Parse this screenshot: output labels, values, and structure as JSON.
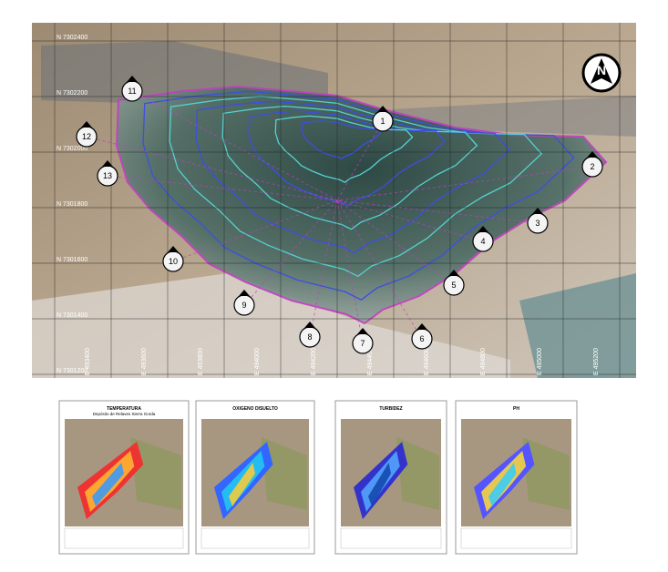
{
  "map": {
    "north_arrow": "N",
    "north_labels": [
      "N 7302400",
      "N 7302200",
      "N 7302000",
      "N 7301800",
      "N 7301600",
      "N 7301400",
      "N 7301200"
    ],
    "east_labels": [
      "E 493400",
      "E 493600",
      "E 493800",
      "E 494000",
      "E 494200",
      "E 494400",
      "E 494600",
      "E 494800",
      "E 495000",
      "E 495200"
    ],
    "section_labels": [
      "1",
      "2",
      "3",
      "4",
      "5",
      "6",
      "7",
      "8",
      "9",
      "10",
      "11",
      "12",
      "13"
    ]
  },
  "thumbnails": [
    {
      "title": "TEMPERATURA",
      "subtitle": "Depósito de Relaves Sierra Gorda"
    },
    {
      "title": "OXIGENO DISUELTO"
    },
    {
      "title": "TURBIDEZ"
    },
    {
      "title": "PH"
    }
  ]
}
